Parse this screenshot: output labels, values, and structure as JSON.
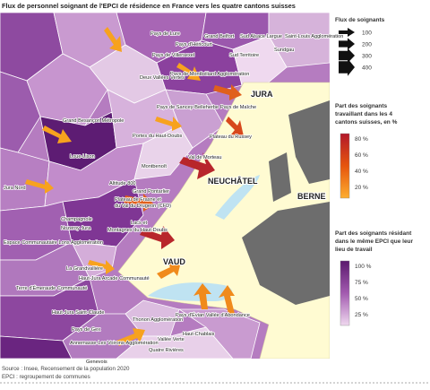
{
  "title": "Flux de personnel soignant de l'EPCI de résidence en France vers les quatre cantons suisses",
  "cantons": [
    "JURA",
    "NEUCHÂTEL",
    "BERNE",
    "VAUD"
  ],
  "epci": [
    "Pays de Lure",
    "Grand Belfort",
    "Sud Alsace Largue",
    "Saint-Louis Agglomération",
    "Pays d'Héricourt",
    "Pays de Villersexel",
    "Sud Territoire",
    "Sundgau",
    "Pays de Montbéliard Agglomération",
    "Deux Vallées Vertes",
    "Pays de Sancey-Belleherbe",
    "Pays de Maîche",
    "Grand Besançon Métropole",
    "Portes du Haut-Doubs",
    "Plateau du Russey",
    "Loue-Lison",
    "Val de Morteau",
    "Montbenoît",
    "Altitude 800",
    "Grand Pontarlier",
    "Plateau de Frasne et",
    "du Val du Drugeon (CFD)",
    "Jura Nord",
    "Champagnole",
    "Nozeroy Jura",
    "Lacs et",
    "Montagnes du Haut-Doubs",
    "Espace Communautaire Lons Agglomération",
    "La Grandvallière",
    "Haut-Jura Arcade Communauté",
    "Terre d'Émeraude Communauté",
    "Haut-Jura Saint-Claude",
    "Thonon Agglomération",
    "Pays d'Évian Vallée d'Abondance",
    "Pays de Gex",
    "Haut-Chablais",
    "Vallée Verte",
    "Annemasse-Les Voirons-Agglomération",
    "Quatre Rivières",
    "Genevois"
  ],
  "legend_flux": {
    "title": "Flux de soignants",
    "items": [
      "100",
      "200",
      "300",
      "400"
    ]
  },
  "legend_share": {
    "title": [
      "Part des soignants",
      "travaillant dans les 4",
      "cantons suisses, en %"
    ],
    "items": [
      "80 %",
      "60 %",
      "40 %",
      "20 %"
    ]
  },
  "legend_local": {
    "title": [
      "Part des soignants résidant",
      "dans le même EPCI que leur",
      "lieu de travail"
    ],
    "items": [
      "100 %",
      "75 %",
      "50 %",
      "25 %"
    ]
  },
  "source": [
    "Source : Insee, Recensement de la population 2020",
    "EPCI : regroupement de communes"
  ]
}
